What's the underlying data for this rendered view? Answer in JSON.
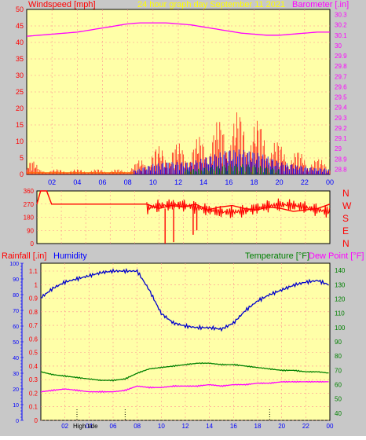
{
  "header": {
    "left_label": "Windspeed [mph]",
    "title": "24 hour graph day   September 11 2021",
    "right_label": "Barometer [.in]"
  },
  "panel2": {
    "compass": [
      "N",
      "W",
      "S",
      "E",
      "N"
    ]
  },
  "panel3": {
    "rain_label": "Rainfall [.in]",
    "humidity_label": "Humidity",
    "temp_label": "Temperature [°F]",
    "dew_label": "Dew Point [°F]",
    "marker_label": "High tide"
  },
  "colors": {
    "plot_bg": "#ffffa8",
    "frame_bg": "#c8c8c8",
    "wind": "#ff0000",
    "gust_blue": "#0000ff",
    "gust_green": "#008000",
    "barometer": "#ff00ff",
    "humidity": "#0000cc",
    "temperature": "#008000",
    "dewpoint": "#ff00ff",
    "title": "#ffff00"
  },
  "chart_data": [
    {
      "type": "line",
      "title": "24 hour graph day   September 11 2021",
      "ylabel": "Windspeed [mph]",
      "y2label": "Barometer [.in]",
      "x_ticks": [
        "02",
        "04",
        "06",
        "08",
        "10",
        "12",
        "14",
        "16",
        "18",
        "20",
        "22",
        "00"
      ],
      "y_ticks": [
        "0",
        "5",
        "10",
        "15",
        "20",
        "25",
        "30",
        "35",
        "40",
        "45",
        "50"
      ],
      "y2_ticks": [
        "28.8",
        "28.9",
        "29",
        "29.1",
        "29.2",
        "29.3",
        "29.4",
        "29.5",
        "29.6",
        "29.7",
        "29.8",
        "29.9",
        "30",
        "30.1",
        "30.2",
        "30.3"
      ],
      "ylim": [
        0,
        50
      ],
      "y2lim": [
        28.75,
        30.35
      ],
      "x_hours": [
        0,
        1,
        2,
        3,
        4,
        5,
        6,
        7,
        8,
        9,
        10,
        11,
        12,
        13,
        14,
        15,
        16,
        17,
        18,
        19,
        20,
        21,
        22,
        23,
        24
      ],
      "series": [
        {
          "name": "Windspeed",
          "values": [
            5,
            1,
            1,
            1,
            1,
            1,
            1,
            1,
            1,
            3,
            5,
            6,
            6,
            6,
            8,
            10,
            12,
            12,
            11,
            9,
            6,
            5,
            4,
            3,
            3
          ]
        },
        {
          "name": "Barometer",
          "values": [
            30.09,
            30.1,
            30.11,
            30.12,
            30.13,
            30.15,
            30.17,
            30.19,
            30.21,
            30.22,
            30.22,
            30.22,
            30.21,
            30.2,
            30.18,
            30.16,
            30.14,
            30.12,
            30.11,
            30.1,
            30.1,
            30.11,
            30.12,
            30.13,
            30.13
          ]
        }
      ]
    },
    {
      "type": "line",
      "y_ticks": [
        "0",
        "90",
        "180",
        "270",
        "360"
      ],
      "ylim": [
        0,
        360
      ],
      "x_hours": [
        0,
        0.3,
        0.8,
        1.2,
        2,
        3,
        4,
        5,
        6,
        7,
        8,
        9,
        10,
        11,
        12,
        13,
        14,
        15,
        16,
        17,
        18,
        19,
        20,
        21,
        22,
        23,
        24
      ],
      "series": [
        {
          "name": "Wind direction",
          "values": [
            270,
            360,
            360,
            270,
            270,
            270,
            270,
            270,
            270,
            270,
            270,
            270,
            240,
            260,
            250,
            270,
            230,
            250,
            260,
            240,
            230,
            250,
            240,
            220,
            230,
            240,
            270
          ]
        }
      ]
    },
    {
      "type": "line",
      "y_ticks_left_outer": [
        "0",
        "10",
        "20",
        "30",
        "40",
        "50",
        "60",
        "70",
        "80",
        "90",
        "100"
      ],
      "y_ticks_left_inner": [
        "0",
        "0.1",
        "0.2",
        "0.3",
        "0.4",
        "0.5",
        "0.6",
        "0.7",
        "0.8",
        "0.9",
        "1",
        "1.1"
      ],
      "y_ticks_right": [
        "40",
        "50",
        "60",
        "70",
        "80",
        "90",
        "100",
        "110",
        "120",
        "130",
        "140"
      ],
      "x_ticks": [
        "02",
        "04",
        "06",
        "08",
        "10",
        "12",
        "14",
        "16",
        "18",
        "20",
        "22",
        "00"
      ],
      "humidity_lim": [
        0,
        100
      ],
      "temp_lim": [
        35,
        145
      ],
      "x_hours": [
        0,
        1,
        2,
        3,
        4,
        5,
        6,
        7,
        8,
        9,
        10,
        11,
        12,
        13,
        14,
        15,
        16,
        17,
        18,
        19,
        20,
        21,
        22,
        23,
        24
      ],
      "series": [
        {
          "name": "Humidity",
          "values": [
            78,
            84,
            88,
            90,
            92,
            94,
            95,
            95,
            95,
            83,
            68,
            62,
            60,
            59,
            59,
            58,
            62,
            70,
            76,
            80,
            83,
            86,
            88,
            89,
            86
          ]
        },
        {
          "name": "Temperature",
          "values": [
            69,
            67,
            66,
            65,
            64,
            63,
            63,
            64,
            68,
            71,
            72,
            73,
            74,
            75,
            75,
            74,
            74,
            73,
            72,
            71,
            70,
            70,
            69,
            69,
            68
          ]
        },
        {
          "name": "Dew Point",
          "values": [
            55,
            56,
            57,
            56,
            55,
            55,
            55,
            56,
            59,
            58,
            58,
            59,
            59,
            59,
            60,
            59,
            60,
            60,
            61,
            61,
            62,
            62,
            62,
            62,
            62
          ]
        }
      ],
      "markers_at_hours": [
        3,
        7,
        19
      ]
    }
  ]
}
